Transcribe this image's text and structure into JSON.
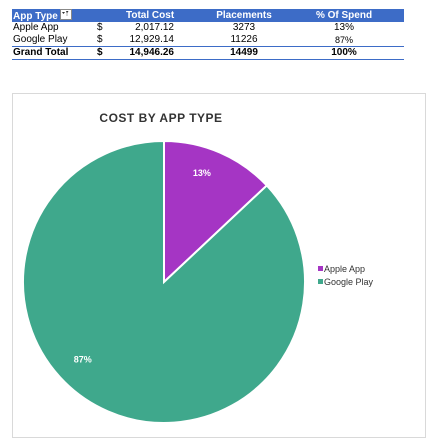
{
  "pivot": {
    "headers": {
      "app_type": "App Type",
      "total_cost": "Total Cost",
      "placements": "Placements",
      "pct_spend": "% Of Spend"
    },
    "rows": [
      {
        "app_type": "Apple App",
        "currency": "$",
        "total_cost": "2,017.12",
        "placements": "3273",
        "pct_spend": "13%"
      },
      {
        "app_type": "Google Play",
        "currency": "$",
        "total_cost": "12,929.14",
        "placements": "11226",
        "pct_spend": "87%"
      }
    ],
    "grand_total": {
      "label": "Grand Total",
      "currency": "$",
      "total_cost": "14,946.26",
      "placements": "14499",
      "pct_spend": "100%"
    }
  },
  "chart_data": {
    "type": "pie",
    "title": "COST BY APP TYPE",
    "categories": [
      "Apple App",
      "Google Play"
    ],
    "values": [
      13,
      87
    ],
    "data_labels": [
      "13%",
      "87%"
    ],
    "colors": [
      "#a535c4",
      "#3fa88c"
    ],
    "legend_position": "right"
  },
  "colors": {
    "header_blue": "#3d6cc7",
    "apple": "#a535c4",
    "google": "#3fa88c"
  }
}
